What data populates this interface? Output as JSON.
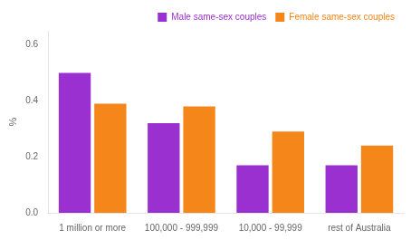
{
  "chart_data": {
    "type": "bar",
    "categories": [
      "1 million or more",
      "100,000 - 999,999",
      "10,000 - 99,999",
      "rest of Australia"
    ],
    "series": [
      {
        "name": "Male same-sex couples",
        "color": "#9B30D0",
        "values": [
          0.5,
          0.32,
          0.17,
          0.17
        ]
      },
      {
        "name": "Female same-sex couples",
        "color": "#F4861A",
        "values": [
          0.39,
          0.38,
          0.29,
          0.24
        ]
      }
    ],
    "ylabel": "%",
    "ylim": [
      0,
      0.65
    ],
    "yticks": [
      {
        "value": 0,
        "label": "0.0"
      },
      0.2,
      0.4,
      0.6
    ],
    "grid": false,
    "legend": "upper right"
  }
}
